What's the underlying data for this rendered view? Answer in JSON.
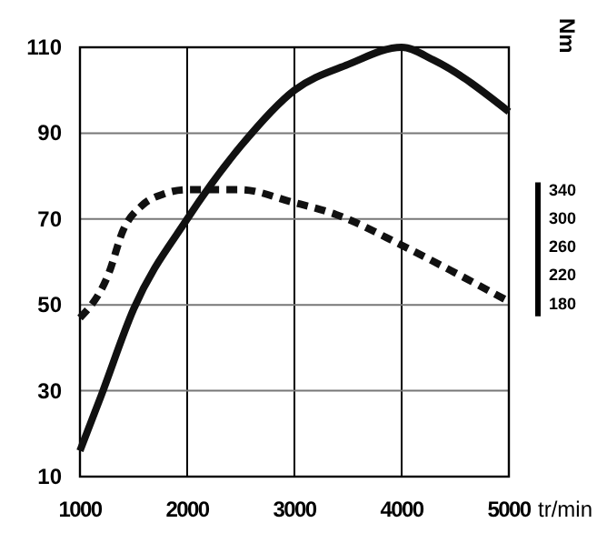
{
  "chart_data": {
    "type": "line",
    "xlabel": "tr/min",
    "y2label": "Nm",
    "xlim": [
      1000,
      5000
    ],
    "xticks": [
      1000,
      2000,
      3000,
      4000,
      5000
    ],
    "ylim": [
      10,
      110
    ],
    "yticks": [
      10,
      30,
      50,
      70,
      90,
      110
    ],
    "y2lim": [
      -63,
      540
    ],
    "y2ticks": [
      180,
      220,
      260,
      300,
      340
    ],
    "grid": true,
    "marker": "none",
    "series": [
      {
        "color": "#111111",
        "line_style": "solid",
        "x": [
          1000,
          1200,
          1500,
          2000,
          2500,
          3000,
          3500,
          4000,
          4300,
          5000
        ],
        "values": [
          16,
          29,
          49,
          70,
          87,
          100,
          106,
          110,
          107,
          95
        ]
      },
      {
        "color": "#111111",
        "line_style": "dashed",
        "axis": "y2",
        "x": [
          1000,
          1270,
          1400,
          1580,
          1780,
          2000,
          2500,
          2970,
          3390,
          4000,
          4490,
          5000
        ],
        "values": [
          160,
          223,
          282,
          318,
          334,
          340,
          340,
          323,
          305,
          262,
          224,
          183
        ]
      }
    ]
  }
}
